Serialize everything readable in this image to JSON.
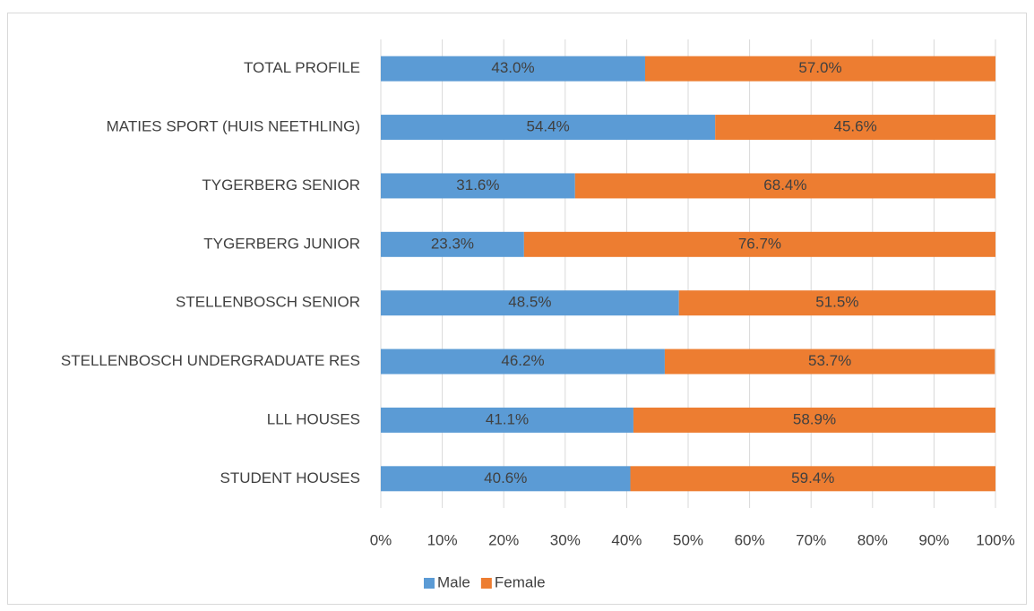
{
  "chart_data": {
    "type": "bar",
    "orientation": "horizontal",
    "stacked": true,
    "categories": [
      "TOTAL PROFILE",
      "MATIES SPORT (HUIS NEETHLING)",
      "TYGERBERG SENIOR",
      "TYGERBERG JUNIOR",
      "STELLENBOSCH SENIOR",
      "STELLENBOSCH UNDERGRADUATE RES",
      "LLL HOUSES",
      "STUDENT HOUSES"
    ],
    "series": [
      {
        "name": "Male",
        "color": "#5b9bd5",
        "values": [
          43.0,
          54.4,
          31.6,
          23.3,
          48.5,
          46.2,
          41.1,
          40.6
        ],
        "value_labels": [
          "43.0%",
          "54.4%",
          "31.6%",
          "23.3%",
          "48.5%",
          "46.2%",
          "41.1%",
          "40.6%"
        ]
      },
      {
        "name": "Female",
        "color": "#ed7d31",
        "values": [
          57.0,
          45.6,
          68.4,
          76.7,
          51.5,
          53.7,
          58.9,
          59.4
        ],
        "value_labels": [
          "57.0%",
          "45.6%",
          "68.4%",
          "76.7%",
          "51.5%",
          "53.7%",
          "58.9%",
          "59.4%"
        ]
      }
    ],
    "xlim": [
      0,
      100
    ],
    "xticks": [
      {
        "value": 0,
        "label": "0%"
      },
      {
        "value": 10,
        "label": "10%"
      },
      {
        "value": 20,
        "label": "20%"
      },
      {
        "value": 30,
        "label": "30%"
      },
      {
        "value": 40,
        "label": "40%"
      },
      {
        "value": 50,
        "label": "50%"
      },
      {
        "value": 60,
        "label": "60%"
      },
      {
        "value": 70,
        "label": "70%"
      },
      {
        "value": 80,
        "label": "80%"
      },
      {
        "value": 90,
        "label": "90%"
      },
      {
        "value": 100,
        "label": "100%"
      }
    ],
    "grid": true,
    "legend": "bottom"
  }
}
